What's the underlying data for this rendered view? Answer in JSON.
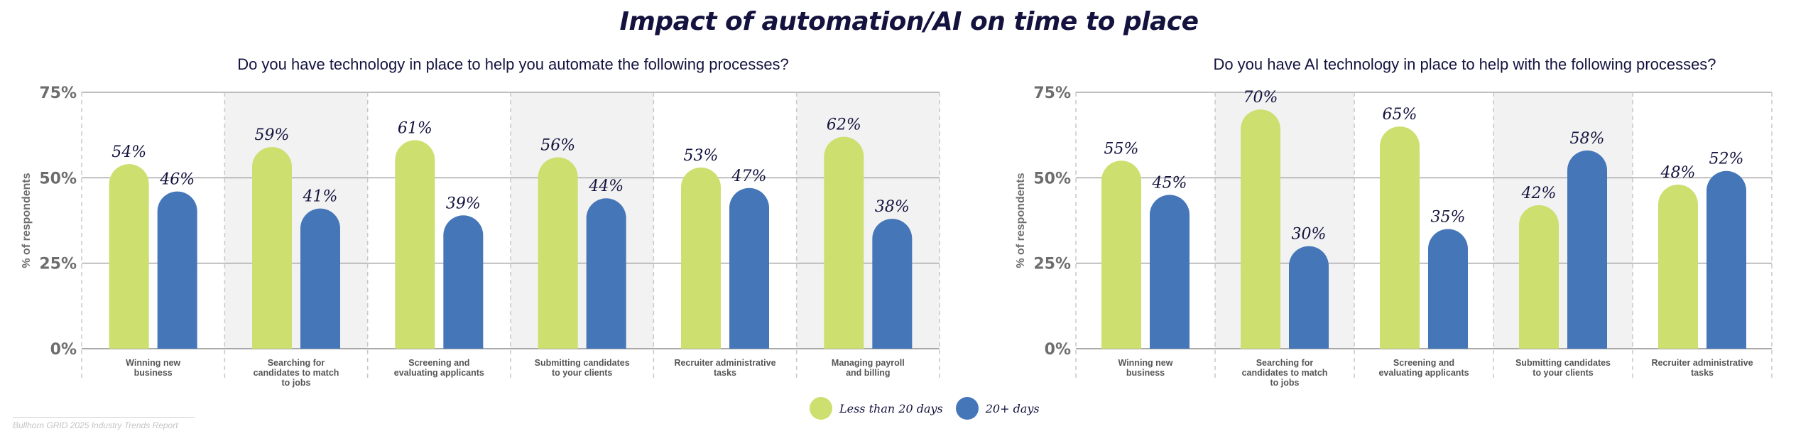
{
  "title": "Impact of automation/AI on time to place",
  "colors": {
    "less": "#ccdf6f",
    "more": "#4576b8",
    "title": "#14133f",
    "axis": "#6d6d6d",
    "shade": "#f2f2f2"
  },
  "legend": [
    {
      "label": "Less than 20 days",
      "color": "#ccdf6f"
    },
    {
      "label": "20+ days",
      "color": "#4576b8"
    }
  ],
  "footer": "Bullhorn GRID 2025 Industry Trends Report",
  "chart_data": [
    {
      "type": "bar",
      "title": "Do you have technology in place to help you automate the following processes?",
      "ylabel": "% of respondents",
      "ylim": [
        0,
        75
      ],
      "yticks": [
        "0%",
        "25%",
        "50%",
        "75%"
      ],
      "categories": [
        [
          "Winning new",
          "business"
        ],
        [
          "Searching for",
          "candidates to match",
          "to jobs"
        ],
        [
          "Screening and",
          "evaluating applicants"
        ],
        [
          "Submitting candidates",
          "to your clients"
        ],
        [
          "Recruiter administrative",
          "tasks"
        ],
        [
          "Managing payroll",
          "and billing"
        ]
      ],
      "series": [
        {
          "name": "Less than 20 days",
          "values": [
            54,
            59,
            61,
            56,
            53,
            62
          ],
          "labels": [
            "54%",
            "59%",
            "61%",
            "56%",
            "53%",
            "62%"
          ]
        },
        {
          "name": "20+ days",
          "values": [
            46,
            41,
            39,
            44,
            47,
            38
          ],
          "labels": [
            "46%",
            "41%",
            "39%",
            "44%",
            "47%",
            "38%"
          ]
        }
      ]
    },
    {
      "type": "bar",
      "title": "Do you have AI technology in place to help with the following processes?",
      "ylabel": "% of respondents",
      "ylim": [
        0,
        75
      ],
      "yticks": [
        "0%",
        "25%",
        "50%",
        "75%"
      ],
      "categories": [
        [
          "Winning new",
          "business"
        ],
        [
          "Searching for",
          "candidates to match",
          "to jobs"
        ],
        [
          "Screening and",
          "evaluating applicants"
        ],
        [
          "Submitting candidates",
          "to your clients"
        ],
        [
          "Recruiter administrative",
          "tasks"
        ]
      ],
      "series": [
        {
          "name": "Less than 20 days",
          "values": [
            55,
            70,
            65,
            42,
            48
          ],
          "labels": [
            "55%",
            "70%",
            "65%",
            "42%",
            "48%"
          ]
        },
        {
          "name": "20+ days",
          "values": [
            45,
            30,
            35,
            58,
            52
          ],
          "labels": [
            "45%",
            "30%",
            "35%",
            "58%",
            "52%"
          ]
        }
      ]
    }
  ]
}
